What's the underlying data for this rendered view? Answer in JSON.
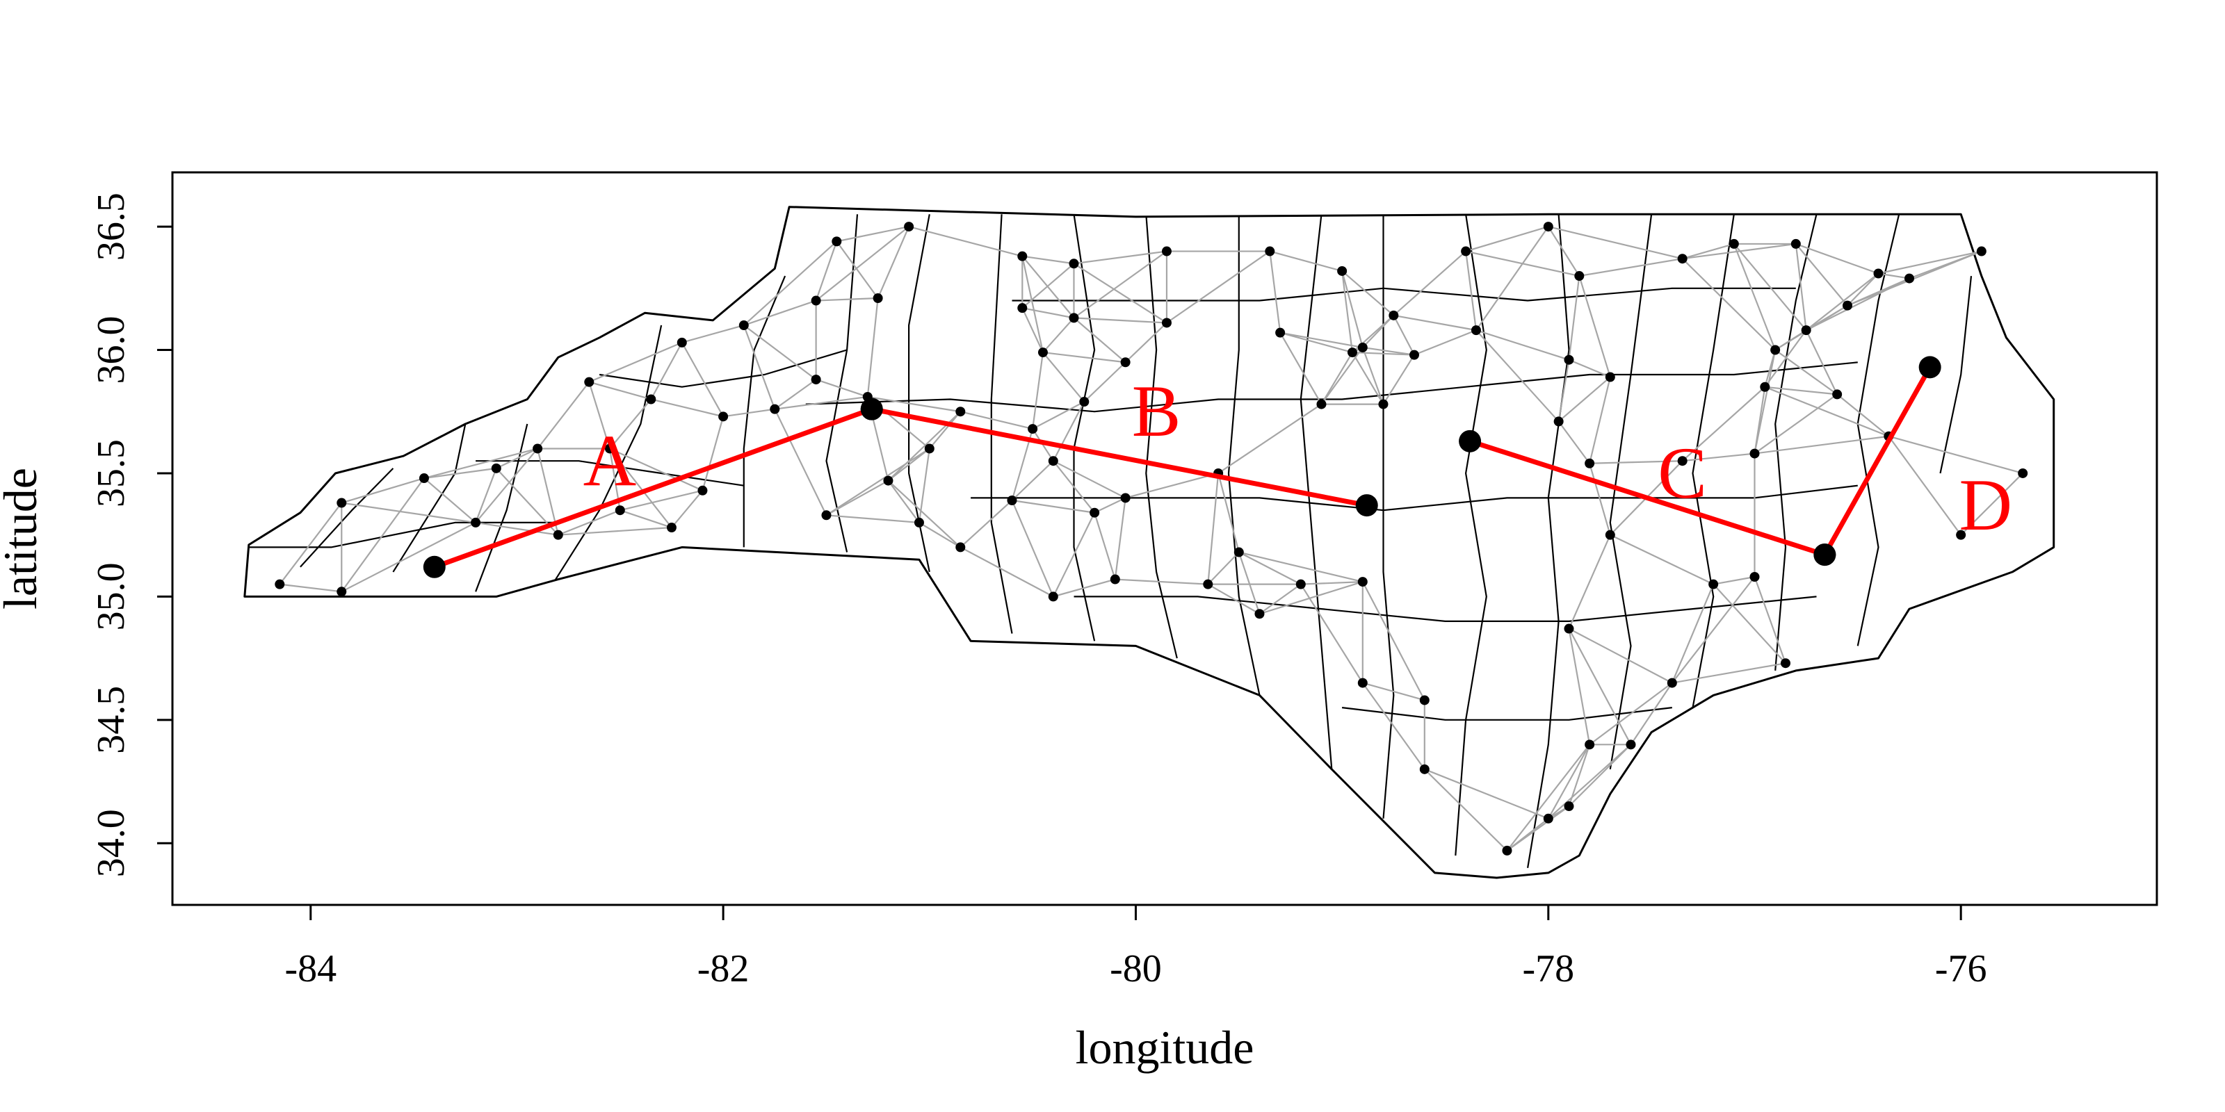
{
  "chart_data": {
    "type": "scatter",
    "xlabel": "longitude",
    "ylabel": "latitude",
    "xlim": [
      -84.67,
      -75.05
    ],
    "ylim": [
      33.75,
      36.72
    ],
    "x_ticks": [
      {
        "value": -84,
        "label": "-84"
      },
      {
        "value": -82,
        "label": "-82"
      },
      {
        "value": -80,
        "label": "-80"
      },
      {
        "value": -78,
        "label": "-78"
      },
      {
        "value": -76,
        "label": "-76"
      }
    ],
    "y_ticks": [
      {
        "value": 34.0,
        "label": "34.0"
      },
      {
        "value": 34.5,
        "label": "34.5"
      },
      {
        "value": 35.0,
        "label": "35.0"
      },
      {
        "value": 35.5,
        "label": "35.5"
      },
      {
        "value": 36.0,
        "label": "36.0"
      },
      {
        "value": 36.5,
        "label": "36.5"
      }
    ],
    "colors": {
      "boundary": "#000000",
      "network": "#a6a6a6",
      "point": "#000000",
      "route": "#ff0000"
    },
    "state_outline": [
      [
        -84.32,
        35.0
      ],
      [
        -84.3,
        35.21
      ],
      [
        -84.05,
        35.34
      ],
      [
        -83.88,
        35.5
      ],
      [
        -83.55,
        35.57
      ],
      [
        -83.25,
        35.7
      ],
      [
        -82.95,
        35.8
      ],
      [
        -82.8,
        35.97
      ],
      [
        -82.6,
        36.05
      ],
      [
        -82.38,
        36.15
      ],
      [
        -82.05,
        36.12
      ],
      [
        -81.75,
        36.33
      ],
      [
        -81.68,
        36.58
      ],
      [
        -80.0,
        36.54
      ],
      [
        -78.0,
        36.55
      ],
      [
        -76.0,
        36.55
      ],
      [
        -75.9,
        36.3
      ],
      [
        -75.78,
        36.05
      ],
      [
        -75.55,
        35.8
      ],
      [
        -75.55,
        35.2
      ],
      [
        -75.75,
        35.1
      ],
      [
        -76.25,
        34.95
      ],
      [
        -76.4,
        34.75
      ],
      [
        -76.8,
        34.7
      ],
      [
        -77.2,
        34.6
      ],
      [
        -77.5,
        34.45
      ],
      [
        -77.7,
        34.2
      ],
      [
        -77.85,
        33.95
      ],
      [
        -78.0,
        33.88
      ],
      [
        -78.25,
        33.86
      ],
      [
        -78.55,
        33.88
      ],
      [
        -79.05,
        34.3
      ],
      [
        -79.4,
        34.6
      ],
      [
        -80.0,
        34.8
      ],
      [
        -80.8,
        34.82
      ],
      [
        -81.05,
        35.15
      ],
      [
        -82.2,
        35.2
      ],
      [
        -82.8,
        35.07
      ],
      [
        -83.1,
        35.0
      ]
    ],
    "county_lines": [
      [
        [
          -82.85,
          35.02
        ],
        [
          -82.6,
          35.35
        ],
        [
          -82.4,
          35.7
        ],
        [
          -82.3,
          36.1
        ]
      ],
      [
        [
          -83.2,
          35.02
        ],
        [
          -83.05,
          35.35
        ],
        [
          -82.95,
          35.7
        ]
      ],
      [
        [
          -83.6,
          35.1
        ],
        [
          -83.3,
          35.5
        ],
        [
          -83.25,
          35.7
        ]
      ],
      [
        [
          -84.05,
          35.12
        ],
        [
          -83.8,
          35.35
        ],
        [
          -83.6,
          35.52
        ]
      ],
      [
        [
          -84.3,
          35.2
        ],
        [
          -83.9,
          35.2
        ],
        [
          -83.3,
          35.3
        ],
        [
          -82.8,
          35.3
        ]
      ],
      [
        [
          -83.2,
          35.55
        ],
        [
          -82.7,
          35.55
        ],
        [
          -82.3,
          35.5
        ],
        [
          -81.9,
          35.45
        ]
      ],
      [
        [
          -82.6,
          35.9
        ],
        [
          -82.2,
          35.85
        ],
        [
          -81.8,
          35.9
        ],
        [
          -81.4,
          36.0
        ]
      ],
      [
        [
          -81.9,
          35.2
        ],
        [
          -81.9,
          35.6
        ],
        [
          -81.85,
          36.0
        ],
        [
          -81.7,
          36.3
        ]
      ],
      [
        [
          -81.4,
          35.18
        ],
        [
          -81.5,
          35.55
        ],
        [
          -81.4,
          36.0
        ],
        [
          -81.35,
          36.55
        ]
      ],
      [
        [
          -81.0,
          35.1
        ],
        [
          -81.1,
          35.5
        ],
        [
          -81.1,
          36.1
        ],
        [
          -81.0,
          36.55
        ]
      ],
      [
        [
          -80.6,
          34.85
        ],
        [
          -80.7,
          35.3
        ],
        [
          -80.7,
          35.8
        ],
        [
          -80.65,
          36.55
        ]
      ],
      [
        [
          -80.2,
          34.82
        ],
        [
          -80.3,
          35.2
        ],
        [
          -80.3,
          35.6
        ],
        [
          -80.2,
          36.0
        ],
        [
          -80.3,
          36.55
        ]
      ],
      [
        [
          -79.8,
          34.75
        ],
        [
          -79.9,
          35.1
        ],
        [
          -79.95,
          35.5
        ],
        [
          -79.9,
          36.0
        ],
        [
          -79.95,
          36.55
        ]
      ],
      [
        [
          -79.4,
          34.6
        ],
        [
          -79.5,
          35.0
        ],
        [
          -79.55,
          35.5
        ],
        [
          -79.5,
          36.0
        ],
        [
          -79.5,
          36.55
        ]
      ],
      [
        [
          -79.05,
          34.3
        ],
        [
          -79.1,
          34.8
        ],
        [
          -79.15,
          35.3
        ],
        [
          -79.2,
          35.8
        ],
        [
          -79.1,
          36.55
        ]
      ],
      [
        [
          -78.8,
          34.1
        ],
        [
          -78.75,
          34.6
        ],
        [
          -78.8,
          35.1
        ],
        [
          -78.8,
          35.6
        ],
        [
          -78.8,
          36.55
        ]
      ],
      [
        [
          -78.45,
          33.95
        ],
        [
          -78.4,
          34.5
        ],
        [
          -78.3,
          35.0
        ],
        [
          -78.4,
          35.5
        ],
        [
          -78.3,
          36.0
        ],
        [
          -78.4,
          36.55
        ]
      ],
      [
        [
          -78.1,
          33.9
        ],
        [
          -78.0,
          34.4
        ],
        [
          -77.95,
          34.9
        ],
        [
          -78.0,
          35.4
        ],
        [
          -77.9,
          36.0
        ],
        [
          -77.95,
          36.55
        ]
      ],
      [
        [
          -77.7,
          34.3
        ],
        [
          -77.6,
          34.8
        ],
        [
          -77.7,
          35.3
        ],
        [
          -77.6,
          35.9
        ],
        [
          -77.5,
          36.55
        ]
      ],
      [
        [
          -77.3,
          34.55
        ],
        [
          -77.2,
          35.0
        ],
        [
          -77.3,
          35.5
        ],
        [
          -77.2,
          36.0
        ],
        [
          -77.1,
          36.55
        ]
      ],
      [
        [
          -76.9,
          34.7
        ],
        [
          -76.85,
          35.2
        ],
        [
          -76.9,
          35.7
        ],
        [
          -76.8,
          36.2
        ],
        [
          -76.7,
          36.55
        ]
      ],
      [
        [
          -76.5,
          34.8
        ],
        [
          -76.4,
          35.2
        ],
        [
          -76.5,
          35.7
        ],
        [
          -76.4,
          36.2
        ],
        [
          -76.3,
          36.55
        ]
      ],
      [
        [
          -76.1,
          35.5
        ],
        [
          -76.0,
          35.9
        ],
        [
          -75.95,
          36.3
        ]
      ],
      [
        [
          -80.8,
          35.4
        ],
        [
          -80.0,
          35.4
        ],
        [
          -79.4,
          35.4
        ],
        [
          -78.8,
          35.35
        ],
        [
          -78.2,
          35.4
        ],
        [
          -77.6,
          35.4
        ],
        [
          -77.0,
          35.4
        ],
        [
          -76.5,
          35.45
        ]
      ],
      [
        [
          -81.6,
          35.78
        ],
        [
          -80.9,
          35.8
        ],
        [
          -80.2,
          35.75
        ],
        [
          -79.6,
          35.8
        ],
        [
          -79.0,
          35.8
        ],
        [
          -78.4,
          35.85
        ],
        [
          -77.8,
          35.9
        ],
        [
          -77.1,
          35.9
        ],
        [
          -76.5,
          35.95
        ]
      ],
      [
        [
          -80.6,
          36.2
        ],
        [
          -80.0,
          36.2
        ],
        [
          -79.4,
          36.2
        ],
        [
          -78.8,
          36.25
        ],
        [
          -78.1,
          36.2
        ],
        [
          -77.4,
          36.25
        ],
        [
          -76.8,
          36.25
        ]
      ],
      [
        [
          -80.3,
          35.0
        ],
        [
          -79.7,
          35.0
        ],
        [
          -79.1,
          34.95
        ],
        [
          -78.5,
          34.9
        ],
        [
          -77.9,
          34.9
        ],
        [
          -77.3,
          34.95
        ],
        [
          -76.7,
          35.0
        ]
      ],
      [
        [
          -79.0,
          34.55
        ],
        [
          -78.5,
          34.5
        ],
        [
          -77.9,
          34.5
        ],
        [
          -77.4,
          34.55
        ]
      ]
    ],
    "centroids": [
      [
        -84.15,
        35.05
      ],
      [
        -83.85,
        35.02
      ],
      [
        -83.85,
        35.38
      ],
      [
        -83.45,
        35.48
      ],
      [
        -83.2,
        35.3
      ],
      [
        -83.1,
        35.52
      ],
      [
        -82.8,
        35.25
      ],
      [
        -82.65,
        35.87
      ],
      [
        -82.55,
        35.6
      ],
      [
        -82.5,
        35.35
      ],
      [
        -82.35,
        35.8
      ],
      [
        -82.25,
        35.28
      ],
      [
        -82.2,
        36.03
      ],
      [
        -82.1,
        35.43
      ],
      [
        -82.0,
        35.73
      ],
      [
        -81.9,
        36.1
      ],
      [
        -81.75,
        35.76
      ],
      [
        -81.55,
        35.88
      ],
      [
        -81.55,
        36.2
      ],
      [
        -81.45,
        36.44
      ],
      [
        -81.3,
        35.81
      ],
      [
        -81.25,
        36.21
      ],
      [
        -81.2,
        35.47
      ],
      [
        -81.1,
        36.5
      ],
      [
        -81.05,
        35.3
      ],
      [
        -81.5,
        35.33
      ],
      [
        -80.85,
        35.75
      ],
      [
        -80.85,
        35.2
      ],
      [
        -80.6,
        35.39
      ],
      [
        -80.55,
        36.38
      ],
      [
        -80.55,
        36.17
      ],
      [
        -80.5,
        35.68
      ],
      [
        -80.45,
        35.99
      ],
      [
        -80.4,
        35.0
      ],
      [
        -80.3,
        36.35
      ],
      [
        -80.3,
        36.13
      ],
      [
        -80.25,
        35.79
      ],
      [
        -80.2,
        35.34
      ],
      [
        -80.05,
        35.4
      ],
      [
        -80.1,
        35.07
      ],
      [
        -79.85,
        36.4
      ],
      [
        -79.85,
        36.11
      ],
      [
        -79.65,
        35.05
      ],
      [
        -79.5,
        35.18
      ],
      [
        -79.4,
        34.93
      ],
      [
        -79.35,
        36.4
      ],
      [
        -79.3,
        36.07
      ],
      [
        -79.2,
        35.05
      ],
      [
        -79.1,
        35.78
      ],
      [
        -79.0,
        36.32
      ],
      [
        -78.95,
        35.99
      ],
      [
        -78.9,
        36.01
      ],
      [
        -78.8,
        35.78
      ],
      [
        -78.75,
        36.14
      ],
      [
        -78.65,
        35.98
      ],
      [
        -78.9,
        35.06
      ],
      [
        -78.9,
        34.65
      ],
      [
        -78.6,
        34.58
      ],
      [
        -78.4,
        36.4
      ],
      [
        -78.35,
        36.08
      ],
      [
        -78.0,
        36.5
      ],
      [
        -77.9,
        35.96
      ],
      [
        -77.95,
        35.71
      ],
      [
        -77.9,
        34.87
      ],
      [
        -77.85,
        36.3
      ],
      [
        -77.8,
        35.54
      ],
      [
        -77.7,
        35.89
      ],
      [
        -77.7,
        35.25
      ],
      [
        -77.6,
        34.4
      ],
      [
        -77.35,
        36.37
      ],
      [
        -77.35,
        35.55
      ],
      [
        -77.2,
        35.05
      ],
      [
        -77.1,
        36.43
      ],
      [
        -77.0,
        35.58
      ],
      [
        -77.0,
        35.08
      ],
      [
        -76.95,
        35.85
      ],
      [
        -76.9,
        36.0
      ],
      [
        -76.8,
        36.43
      ],
      [
        -76.75,
        36.08
      ],
      [
        -76.6,
        35.82
      ],
      [
        -76.55,
        36.18
      ],
      [
        -76.4,
        36.31
      ],
      [
        -76.35,
        35.65
      ],
      [
        -76.25,
        36.29
      ],
      [
        -75.9,
        36.4
      ],
      [
        -75.7,
        35.5
      ],
      [
        -76.0,
        35.25
      ],
      [
        -76.85,
        34.73
      ],
      [
        -77.4,
        34.65
      ],
      [
        -78.6,
        34.3
      ],
      [
        -77.9,
        34.15
      ],
      [
        -78.2,
        33.97
      ],
      [
        -77.8,
        34.4
      ],
      [
        -78.0,
        34.1
      ],
      [
        -80.05,
        35.95
      ],
      [
        -79.6,
        35.5
      ],
      [
        -80.4,
        35.55
      ],
      [
        -81.0,
        35.6
      ],
      [
        -82.9,
        35.6
      ]
    ],
    "routes": [
      {
        "label": "A",
        "from": [
          -83.4,
          35.12
        ],
        "to": [
          -81.28,
          35.76
        ]
      },
      {
        "label": "B",
        "from": [
          -81.28,
          35.76
        ],
        "to": [
          -78.88,
          35.37
        ]
      },
      {
        "label": "C",
        "from": [
          -78.38,
          35.63
        ],
        "to": [
          -76.66,
          35.17
        ]
      },
      {
        "label": "D",
        "from": [
          -76.66,
          35.17
        ],
        "to": [
          -76.15,
          35.93
        ]
      }
    ],
    "route_labels": [
      {
        "label": "A",
        "x": -82.55,
        "y": 35.52
      },
      {
        "label": "B",
        "x": -79.9,
        "y": 35.72
      },
      {
        "label": "C",
        "x": -77.35,
        "y": 35.47
      },
      {
        "label": "D",
        "x": -75.88,
        "y": 35.34
      }
    ]
  }
}
